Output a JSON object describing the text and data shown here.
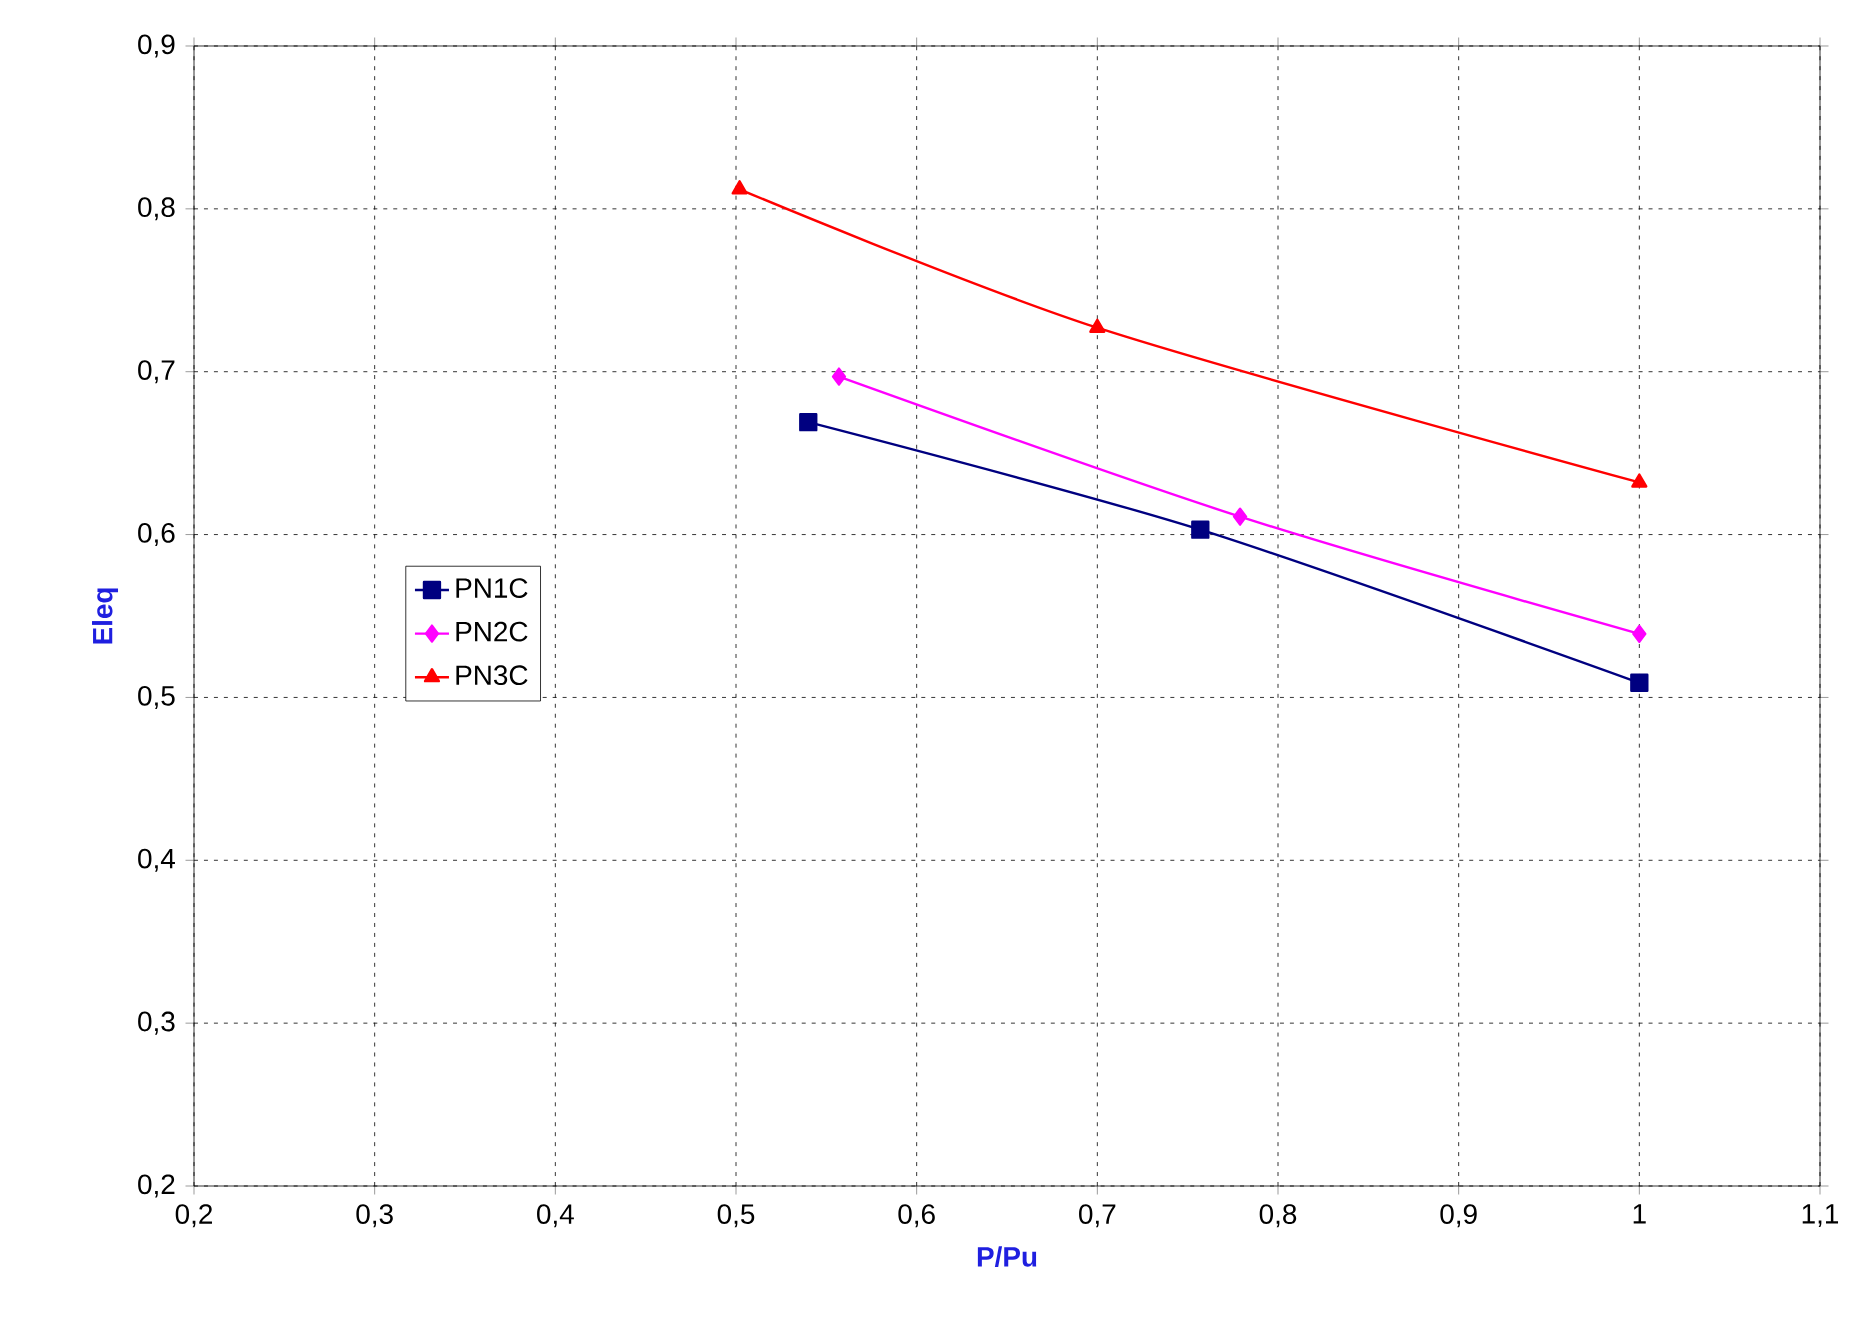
{
  "chart_data": {
    "type": "line",
    "xlabel": "P/Pu",
    "ylabel": "Eleq",
    "xlim": [
      0.2,
      1.1
    ],
    "ylim": [
      0.2,
      0.9
    ],
    "xticks": [
      {
        "value": 0.2,
        "label": "0,2"
      },
      {
        "value": 0.3,
        "label": "0,3"
      },
      {
        "value": 0.4,
        "label": "0,4"
      },
      {
        "value": 0.5,
        "label": "0,5"
      },
      {
        "value": 0.6,
        "label": "0,6"
      },
      {
        "value": 0.7,
        "label": "0,7"
      },
      {
        "value": 0.8,
        "label": "0,8"
      },
      {
        "value": 0.9,
        "label": "0,9"
      },
      {
        "value": 1,
        "label": "1"
      },
      {
        "value": 1.1,
        "label": "1,1"
      }
    ],
    "yticks": [
      {
        "value": 0.2,
        "label": "0,2"
      },
      {
        "value": 0.3,
        "label": "0,3"
      },
      {
        "value": 0.4,
        "label": "0,4"
      },
      {
        "value": 0.5,
        "label": "0,5"
      },
      {
        "value": 0.6,
        "label": "0,6"
      },
      {
        "value": 0.7,
        "label": "0,7"
      },
      {
        "value": 0.8,
        "label": "0,8"
      },
      {
        "value": 0.9,
        "label": "0,9"
      }
    ],
    "grid": true,
    "legend": "left",
    "line_style": "solid",
    "series": [
      {
        "name": "PN1C",
        "color": "#000080",
        "marker": "square",
        "x": [
          0.54,
          0.757,
          1.0
        ],
        "values": [
          0.669,
          0.603,
          0.509
        ]
      },
      {
        "name": "PN2C",
        "color": "#ff00ff",
        "marker": "diamond",
        "x": [
          0.557,
          0.779,
          1.0
        ],
        "values": [
          0.697,
          0.611,
          0.539
        ]
      },
      {
        "name": "PN3C",
        "color": "#ff0000",
        "marker": "triangle",
        "x": [
          0.502,
          0.7,
          1.0
        ],
        "values": [
          0.812,
          0.727,
          0.632
        ]
      }
    ]
  }
}
